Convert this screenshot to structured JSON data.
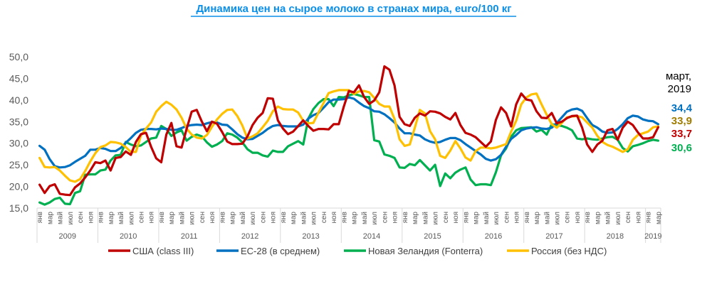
{
  "chart_data": {
    "type": "line",
    "title": "Динамика цен на сырое молоко в странах мира, euro/100 кг",
    "xlabel": "",
    "ylabel": "",
    "ylim": [
      15,
      50
    ],
    "y_ticks": [
      "15,0",
      "20,0",
      "25,0",
      "30,0",
      "35,0",
      "40,0",
      "45,0",
      "50,0"
    ],
    "grid": false,
    "legend_position": "bottom",
    "x_start": "2009-01",
    "x_end": "2019-03",
    "month_labels": [
      "янв",
      "мар",
      "май",
      "июл",
      "сен",
      "ноя"
    ],
    "years": [
      "2009",
      "2010",
      "2011",
      "2012",
      "2013",
      "2014",
      "2015",
      "2016",
      "2017",
      "2018",
      "2019"
    ],
    "annotation": {
      "line1": "март,",
      "line2": "2019"
    },
    "series": [
      {
        "name": "США (class III)",
        "color": "#c00000",
        "end_label": "33,7",
        "end_label_color": "#c00000",
        "values": [
          20.4,
          18.5,
          20.1,
          20.5,
          18.3,
          18.1,
          18.0,
          19.8,
          20.7,
          22.1,
          23.7,
          25.6,
          25.4,
          26,
          23.7,
          26.6,
          26.8,
          28.1,
          27.3,
          30.3,
          32.1,
          32.4,
          29.2,
          26.5,
          25.6,
          32,
          34.7,
          29.3,
          29,
          33.3,
          37.3,
          37.7,
          35,
          32.8,
          35,
          34.5,
          32.6,
          30.4,
          29.8,
          29.8,
          29.9,
          31.6,
          34.2,
          35.9,
          37,
          40.4,
          40.3,
          35.3,
          33.4,
          32.1,
          32.7,
          34,
          35.3,
          34,
          32.9,
          33.3,
          33.3,
          33.2,
          34.4,
          34.4,
          38.5,
          42.1,
          41.8,
          43.4,
          40.7,
          39.1,
          39.9,
          41.8,
          47.8,
          47,
          43.4,
          36.1,
          34.4,
          34,
          35.9,
          36.9,
          36.4,
          37.4,
          37.3,
          36.9,
          36.1,
          35.5,
          37,
          34.2,
          32.4,
          32,
          31.4,
          30.3,
          29.2,
          30.4,
          35.4,
          38.3,
          37,
          33.9,
          39,
          41.5,
          40.1,
          39.9,
          37.4,
          35.9,
          35.8,
          37,
          34.6,
          35,
          35.8,
          36.3,
          36.4,
          33.6,
          29.7,
          28,
          29.7,
          30.6,
          33,
          33.3,
          30.8,
          33.6,
          35,
          34.2,
          32.5,
          31.1,
          31.1,
          31.4,
          33.7
        ]
      },
      {
        "name": "ЕС-28 (в среднем)",
        "color": "#0070c0",
        "end_label": "34,4",
        "end_label_color": "#0070c0",
        "values": [
          29.4,
          28.5,
          26.3,
          24.7,
          24.4,
          24.5,
          24.9,
          25.7,
          26.4,
          27.1,
          28.5,
          28.5,
          28.9,
          28.7,
          28.2,
          28.2,
          28.9,
          30.1,
          31.2,
          32.4,
          33.1,
          33.3,
          33.3,
          33.2,
          33.4,
          33.3,
          33.1,
          33.1,
          33.5,
          34,
          34.2,
          34.3,
          34.2,
          34.6,
          34.9,
          34.8,
          34.3,
          34.2,
          33.2,
          32.1,
          31.3,
          30.9,
          31,
          31.7,
          32.4,
          33.3,
          34,
          34.2,
          34,
          33.9,
          33.9,
          33.9,
          34.3,
          35.7,
          36.5,
          37,
          38.2,
          39.5,
          40.1,
          40.1,
          40.2,
          40.6,
          40.3,
          39.4,
          38.6,
          38.1,
          37.4,
          37.3,
          36.7,
          35.8,
          34.8,
          33.4,
          32.3,
          32.3,
          32,
          31.8,
          30.9,
          30.4,
          30.1,
          30.3,
          30.8,
          31.2,
          31.2,
          30.7,
          29.8,
          29,
          28.2,
          27.4,
          26.4,
          26,
          26.3,
          27.3,
          29.2,
          31,
          31.9,
          33,
          33.4,
          33.6,
          33.7,
          33.4,
          33.3,
          33.6,
          34.7,
          36,
          37.3,
          37.8,
          38,
          37.5,
          35.8,
          34.2,
          33.6,
          32.7,
          32.4,
          32.5,
          33.3,
          34.4,
          35.8,
          36.4,
          36.2,
          35.5,
          35.2,
          35.1,
          34.4
        ]
      },
      {
        "name": "Новая Зеландия (Fonterra)",
        "color": "#00b050",
        "end_label": "30,6",
        "end_label_color": "#00b050",
        "values": [
          16.3,
          15.8,
          16.3,
          17.1,
          17.4,
          16,
          15.9,
          18.5,
          18.9,
          22.7,
          22.8,
          22.8,
          23.7,
          23.9,
          26,
          27.2,
          27.3,
          30.3,
          29.7,
          29.3,
          29.5,
          30.3,
          31.1,
          31.3,
          34,
          33.3,
          31.7,
          32.5,
          33,
          30.6,
          31.5,
          32,
          31.6,
          30.2,
          29.2,
          29.7,
          30.5,
          32.3,
          32,
          31.3,
          30.2,
          28.6,
          27.8,
          27.8,
          27.2,
          26.9,
          28.3,
          28,
          28,
          29.3,
          29.9,
          30.5,
          29.7,
          35.7,
          37.9,
          39.3,
          40.2,
          40.2,
          38.6,
          40.7,
          40.6,
          41.1,
          41.4,
          41.1,
          40.7,
          40.7,
          30.7,
          30.4,
          27.4,
          27.1,
          26.6,
          24.4,
          24.3,
          25.2,
          24.9,
          26.1,
          24.9,
          23.7,
          25,
          20.1,
          23,
          21.9,
          23.2,
          23.9,
          24.4,
          21.6,
          20.3,
          20.5,
          20.5,
          20.3,
          23.3,
          27.2,
          28.8,
          31.5,
          33,
          33.5,
          33.6,
          33.7,
          32.7,
          33.1,
          32,
          34.4,
          34.2,
          34,
          33.6,
          33,
          31.1,
          30.9,
          31.1,
          30.9,
          30.8,
          31.1,
          31.4,
          31.5,
          30.8,
          28.9,
          28.1,
          29.3,
          29.6,
          30,
          30.5,
          30.8,
          30.6
        ]
      },
      {
        "name": "Россия (без НДС)",
        "color": "#ffc000",
        "end_label": "33,9",
        "end_label_color": "#a07c00",
        "values": [
          26.6,
          24.5,
          24.4,
          24.5,
          23.7,
          22.5,
          21.4,
          21.1,
          21.7,
          23.6,
          25.8,
          27.7,
          29.1,
          29.5,
          30.3,
          30.2,
          29.9,
          29.1,
          28,
          28,
          31.8,
          33.4,
          34.8,
          37.3,
          38.6,
          39.6,
          38.9,
          37.8,
          35.9,
          33.4,
          32,
          31.3,
          31.1,
          31.9,
          33.8,
          35.5,
          36.8,
          37.7,
          37.8,
          36.3,
          34.1,
          31.1,
          31.6,
          32.3,
          33.7,
          35.2,
          37.4,
          38.5,
          37.9,
          37.8,
          37.8,
          37.1,
          35.2,
          34.6,
          34.7,
          37.1,
          39.3,
          41.6,
          42,
          42.3,
          42.3,
          42.3,
          41.4,
          42,
          42.1,
          41.8,
          40.5,
          39.1,
          38.5,
          38.5,
          35.6,
          30.9,
          29.4,
          29.7,
          33.6,
          37.7,
          36.9,
          32.8,
          30.9,
          27.1,
          26.6,
          28.3,
          30.5,
          28.8,
          26.7,
          26,
          28.2,
          29,
          29,
          28.8,
          29,
          29.4,
          29.8,
          32.7,
          35.2,
          39,
          40.6,
          41.3,
          41.5,
          39,
          36.6,
          34.4,
          33.6,
          34.7,
          36,
          36.2,
          36.3,
          36,
          34.8,
          33.6,
          31.7,
          30.3,
          29.6,
          29.2,
          28.6,
          28,
          28.6,
          30.8,
          31.9,
          32.3,
          32.7,
          33.7,
          33.9
        ]
      }
    ]
  }
}
